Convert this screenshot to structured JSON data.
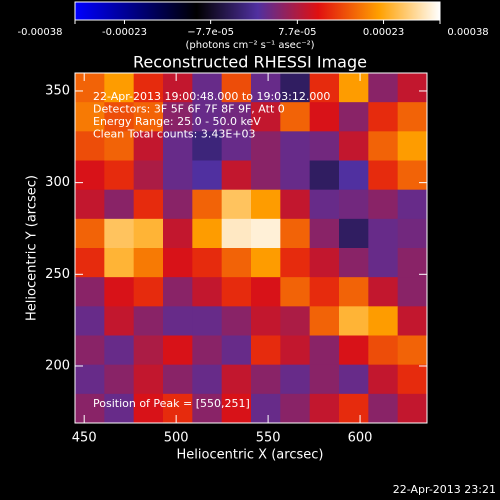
{
  "chart_data": {
    "type": "heatmap",
    "title": "Reconstructed RHESSI Image",
    "xlabel": "Heliocentric X (arcsec)",
    "ylabel": "Heliocentric Y (arcsec)",
    "xlim": [
      445,
      636.4
    ],
    "ylim": [
      168.9,
      359.8
    ],
    "xticks": [
      450,
      500,
      550,
      600
    ],
    "yticks": [
      200,
      250,
      300,
      350
    ],
    "colorbar": {
      "label": "(photons cm⁻² s⁻¹ asec⁻²)",
      "lim": [
        -0.00038,
        0.00038
      ],
      "ticks": [
        -0.00038,
        -0.00023,
        {
          "value": -7.7e-05,
          "label": "−7.7e-05"
        },
        {
          "value": 7.7e-05,
          "label": "7.7e-05"
        },
        0.00023,
        0.00038
      ],
      "colormap": [
        "#0000ff",
        "#000080",
        "#000000",
        "#5030a0",
        "#e01010",
        "#ffa000",
        "#ffffff"
      ]
    },
    "annotations": [
      "22-Apr-2013 19:00:48.000 to 19:03:12.000",
      "Detectors: 3F 5F 6F 7F 8F 9F, Att 0",
      "Energy Range: 25.0 - 50.0 keV",
      "Clean    Total counts: 3.43E+03"
    ],
    "peak_label": "Position of Peak = [550,251]",
    "footer": "22-Apr-2013 23:21",
    "values": [
      [
        0.0002,
        0.00025,
        0.00015,
        0.0001,
        2e-05,
        0.00018,
        2e-05,
        -5e-05,
        0.00015,
        0.00025,
        5e-05,
        0.0001
      ],
      [
        0.00022,
        0.00018,
        0.0002,
        5e-05,
        2e-05,
        3e-05,
        0.0001,
        0.0002,
        0.00012,
        5e-05,
        0.00015,
        0.0002
      ],
      [
        0.00018,
        0.0002,
        0.0001,
        2e-05,
        -3e-05,
        2e-05,
        5e-05,
        2e-05,
        3e-05,
        0.0001,
        0.0002,
        0.00025
      ],
      [
        0.00012,
        0.00015,
        8e-05,
        2e-05,
        0.0,
        0.0001,
        5e-05,
        2e-05,
        -5e-05,
        0.0,
        0.00015,
        0.0002
      ],
      [
        0.0001,
        5e-05,
        0.00015,
        5e-05,
        0.0002,
        0.0003,
        0.00025,
        0.0001,
        2e-05,
        3e-05,
        5e-05,
        2e-05
      ],
      [
        0.0002,
        0.0003,
        0.00028,
        0.0001,
        0.00025,
        0.00035,
        0.00036,
        0.0002,
        5e-05,
        -5e-05,
        2e-05,
        3e-05
      ],
      [
        0.00015,
        0.00028,
        0.00022,
        0.00012,
        0.00015,
        0.0002,
        0.00025,
        0.00015,
        0.0001,
        5e-05,
        2e-05,
        5e-05
      ],
      [
        5e-05,
        0.00012,
        0.00015,
        5e-05,
        0.0001,
        0.00015,
        0.00012,
        0.0002,
        0.00015,
        0.0002,
        0.0001,
        5e-05
      ],
      [
        2e-05,
        0.0001,
        5e-05,
        2e-05,
        2e-05,
        5e-05,
        0.0001,
        8e-05,
        0.0002,
        0.00028,
        0.00025,
        0.0001
      ],
      [
        5e-05,
        2e-05,
        8e-05,
        0.00012,
        5e-05,
        2e-05,
        0.00015,
        0.0001,
        5e-05,
        0.00012,
        0.00018,
        0.0002
      ],
      [
        2e-05,
        5e-05,
        0.0001,
        5e-05,
        2e-05,
        0.0001,
        5e-05,
        2e-05,
        5e-05,
        2e-05,
        0.0001,
        0.00015
      ],
      [
        5e-05,
        2e-05,
        0.00012,
        0.00015,
        5e-05,
        0.00012,
        2e-05,
        5e-05,
        0.0001,
        0.00015,
        5e-05,
        0.0001
      ]
    ]
  }
}
